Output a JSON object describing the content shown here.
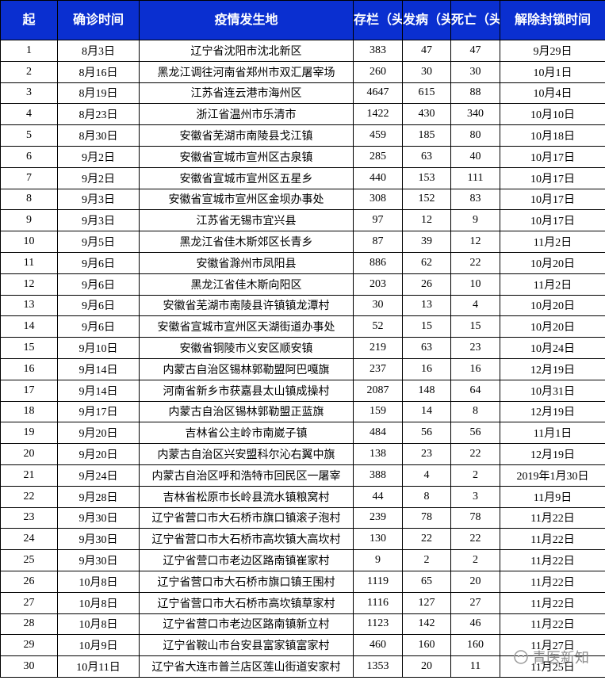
{
  "table": {
    "header": [
      "起",
      "确诊时间",
      "疫情发生地",
      "存栏（头）",
      "发病（头）",
      "死亡（头）",
      "解除封锁时间"
    ],
    "rows": [
      [
        "1",
        "8月3日",
        "辽宁省沈阳市沈北新区",
        383,
        47,
        47,
        "9月29日"
      ],
      [
        "2",
        "8月16日",
        "黑龙江调往河南省郑州市双汇屠宰场",
        260,
        30,
        30,
        "10月1日"
      ],
      [
        "3",
        "8月19日",
        "江苏省连云港市海州区",
        4647,
        615,
        88,
        "10月4日"
      ],
      [
        "4",
        "8月23日",
        "浙江省温州市乐清市",
        1422,
        430,
        340,
        "10月10日"
      ],
      [
        "5",
        "8月30日",
        "安徽省芜湖市南陵县戈江镇",
        459,
        185,
        80,
        "10月18日"
      ],
      [
        "6",
        "9月2日",
        "安徽省宣城市宣州区古泉镇",
        285,
        63,
        40,
        "10月17日"
      ],
      [
        "7",
        "9月2日",
        "安徽省宣城市宣州区五星乡",
        440,
        153,
        111,
        "10月17日"
      ],
      [
        "8",
        "9月3日",
        "安徽省宣城市宣州区金坝办事处",
        308,
        152,
        83,
        "10月17日"
      ],
      [
        "9",
        "9月3日",
        "江苏省无锡市宜兴县",
        97,
        12,
        9,
        "10月17日"
      ],
      [
        "10",
        "9月5日",
        "黑龙江省佳木斯郊区长青乡",
        87,
        39,
        12,
        "11月2日"
      ],
      [
        "11",
        "9月6日",
        "安徽省滁州市凤阳县",
        886,
        62,
        22,
        "10月20日"
      ],
      [
        "12",
        "9月6日",
        "黑龙江省佳木斯向阳区",
        203,
        26,
        10,
        "11月2日"
      ],
      [
        "13",
        "9月6日",
        "安徽省芜湖市南陵县许镇镇龙潭村",
        30,
        13,
        4,
        "10月20日"
      ],
      [
        "14",
        "9月6日",
        "安徽省宣城市宣州区天湖街道办事处",
        52,
        15,
        15,
        "10月20日"
      ],
      [
        "15",
        "9月10日",
        "安徽省铜陵市义安区顺安镇",
        219,
        63,
        23,
        "10月24日"
      ],
      [
        "16",
        "9月14日",
        "内蒙古自治区锡林郭勒盟阿巴嘎旗",
        237,
        16,
        16,
        "12月19日"
      ],
      [
        "17",
        "9月14日",
        "河南省新乡市获嘉县太山镇成操村",
        2087,
        148,
        64,
        "10月31日"
      ],
      [
        "18",
        "9月17日",
        "内蒙古自治区锡林郭勒盟正蓝旗",
        159,
        14,
        8,
        "12月19日"
      ],
      [
        "19",
        "9月20日",
        "吉林省公主岭市南崴子镇",
        484,
        56,
        56,
        "11月1日"
      ],
      [
        "20",
        "9月20日",
        "内蒙古自治区兴安盟科尔沁右翼中旗",
        138,
        23,
        22,
        "12月19日"
      ],
      [
        "21",
        "9月24日",
        "内蒙古自治区呼和浩特市回民区一屠宰",
        388,
        4,
        2,
        "2019年1月30日"
      ],
      [
        "22",
        "9月28日",
        "吉林省松原市长岭县流水镇粮窝村",
        44,
        8,
        3,
        "11月9日"
      ],
      [
        "23",
        "9月30日",
        "辽宁省营口市大石桥市旗口镇滚子泡村",
        239,
        78,
        78,
        "11月22日"
      ],
      [
        "24",
        "9月30日",
        "辽宁省营口市大石桥市高坎镇大高坎村",
        130,
        22,
        22,
        "11月22日"
      ],
      [
        "25",
        "9月30日",
        "辽宁省营口市老边区路南镇崔家村",
        9,
        2,
        2,
        "11月22日"
      ],
      [
        "26",
        "10月8日",
        "辽宁省营口市大石桥市旗口镇王围村",
        1119,
        65,
        20,
        "11月22日"
      ],
      [
        "27",
        "10月8日",
        "辽宁省营口市大石桥市高坎镇草家村",
        1116,
        127,
        27,
        "11月22日"
      ],
      [
        "28",
        "10月8日",
        "辽宁省营口市老边区路南镇新立村",
        1123,
        142,
        46,
        "11月22日"
      ],
      [
        "29",
        "10月9日",
        "辽宁省鞍山市台安县富家镇富家村",
        460,
        160,
        160,
        "11月27日"
      ],
      [
        "30",
        "10月11日",
        "辽宁省大连市普兰店区莲山街道安家村",
        1353,
        20,
        11,
        "11月25日"
      ]
    ]
  },
  "watermark": "青医新知"
}
